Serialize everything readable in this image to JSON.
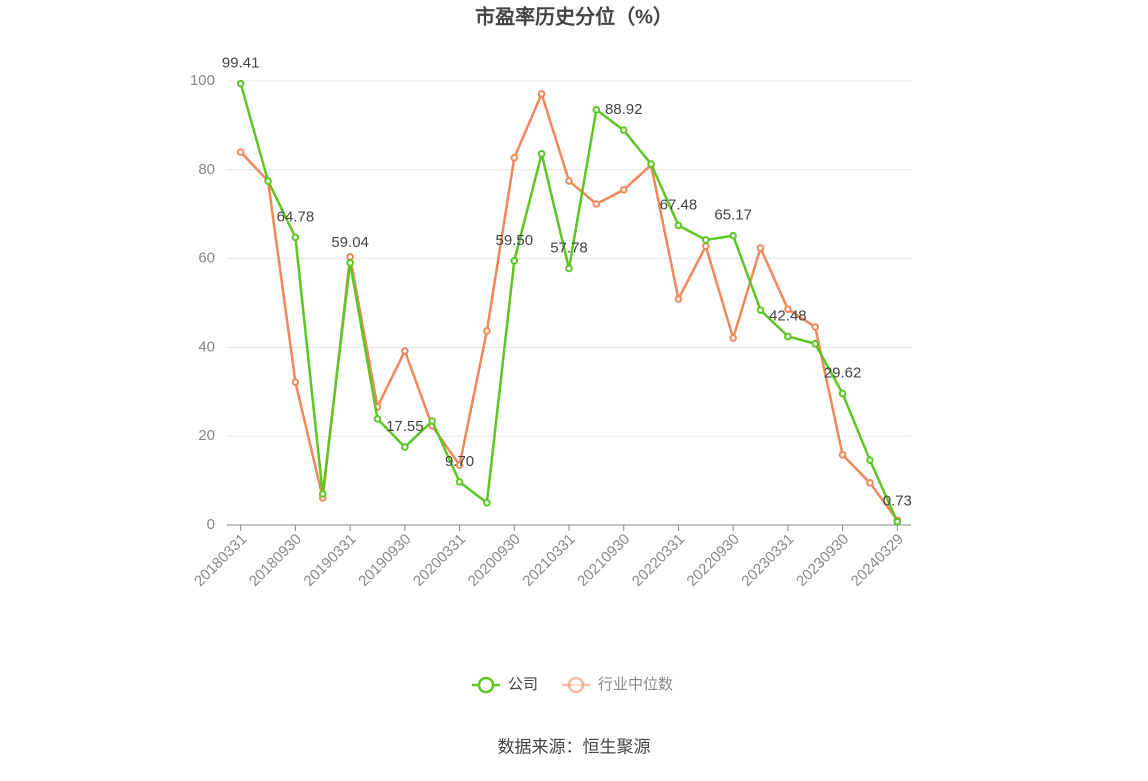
{
  "chart_data": {
    "type": "line",
    "title": "市盈率历史分位（%）",
    "source": "数据来源：恒生聚源",
    "categories": [
      "20180331",
      null,
      "20180930",
      null,
      "20190331",
      null,
      "20190930",
      null,
      "20200331",
      null,
      "20200930",
      null,
      "20210331",
      null,
      "20210930",
      null,
      "20220331",
      null,
      "20220930",
      null,
      "20230331",
      null,
      "20230930",
      null,
      "20240329"
    ],
    "series": [
      {
        "name": "公司",
        "color": "#5cc625",
        "values": [
          99.41,
          77.5,
          64.78,
          7.0,
          59.04,
          23.9,
          17.55,
          23.4,
          9.7,
          5.0,
          59.5,
          83.6,
          57.78,
          93.5,
          88.92,
          81.3,
          67.48,
          64.2,
          65.17,
          48.4,
          42.48,
          40.8,
          29.62,
          14.6,
          0.73
        ],
        "value_labels": [
          "99.41",
          null,
          "64.78",
          null,
          "59.04",
          null,
          "17.55",
          null,
          "9.70",
          null,
          "59.50",
          null,
          "57.78",
          null,
          "88.92",
          null,
          "67.48",
          null,
          "65.17",
          null,
          "42.48",
          null,
          "29.62",
          null,
          "0.73"
        ]
      },
      {
        "name": "行业中位数",
        "color": "#f0885a",
        "values": [
          84.0,
          77.5,
          32.2,
          6.1,
          60.4,
          26.6,
          39.2,
          22.3,
          13.5,
          43.7,
          82.7,
          97.1,
          77.5,
          72.3,
          75.5,
          81.1,
          50.9,
          62.8,
          42.1,
          62.4,
          48.6,
          44.6,
          15.8,
          9.5,
          1.1
        ]
      }
    ],
    "ylim": [
      0,
      100
    ],
    "yticks": [
      0,
      20,
      40,
      60,
      80,
      100
    ],
    "grid": true,
    "legend": "bottom"
  }
}
